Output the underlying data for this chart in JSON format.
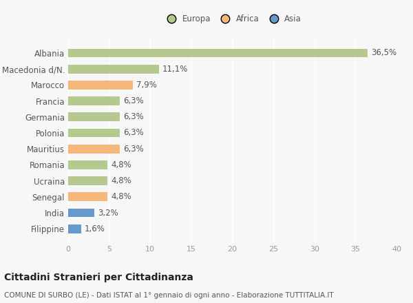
{
  "categories": [
    "Filippine",
    "India",
    "Senegal",
    "Ucraina",
    "Romania",
    "Mauritius",
    "Polonia",
    "Germania",
    "Francia",
    "Marocco",
    "Macedonia d/N.",
    "Albania"
  ],
  "values": [
    1.6,
    3.2,
    4.8,
    4.8,
    4.8,
    6.3,
    6.3,
    6.3,
    6.3,
    7.9,
    11.1,
    36.5
  ],
  "labels": [
    "1,6%",
    "3,2%",
    "4,8%",
    "4,8%",
    "4,8%",
    "6,3%",
    "6,3%",
    "6,3%",
    "6,3%",
    "7,9%",
    "11,1%",
    "36,5%"
  ],
  "continents": [
    "Asia",
    "Asia",
    "Africa",
    "Europa",
    "Europa",
    "Africa",
    "Europa",
    "Europa",
    "Europa",
    "Africa",
    "Europa",
    "Europa"
  ],
  "colors": {
    "Europa": "#b5c98e",
    "Africa": "#f5b87a",
    "Asia": "#6699cc"
  },
  "legend_labels": [
    "Europa",
    "Africa",
    "Asia"
  ],
  "xlim": [
    0,
    40
  ],
  "xticks": [
    0,
    5,
    10,
    15,
    20,
    25,
    30,
    35,
    40
  ],
  "title_main": "Cittadini Stranieri per Cittadinanza",
  "title_sub": "COMUNE DI SURBO (LE) - Dati ISTAT al 1° gennaio di ogni anno - Elaborazione TUTTITALIA.IT",
  "background_color": "#f7f7f7",
  "bar_height": 0.55,
  "grid_color": "#ffffff",
  "label_fontsize": 8.5,
  "tick_fontsize": 8,
  "ylabel_fontsize": 8.5,
  "title_main_fontsize": 10,
  "title_sub_fontsize": 7.5
}
